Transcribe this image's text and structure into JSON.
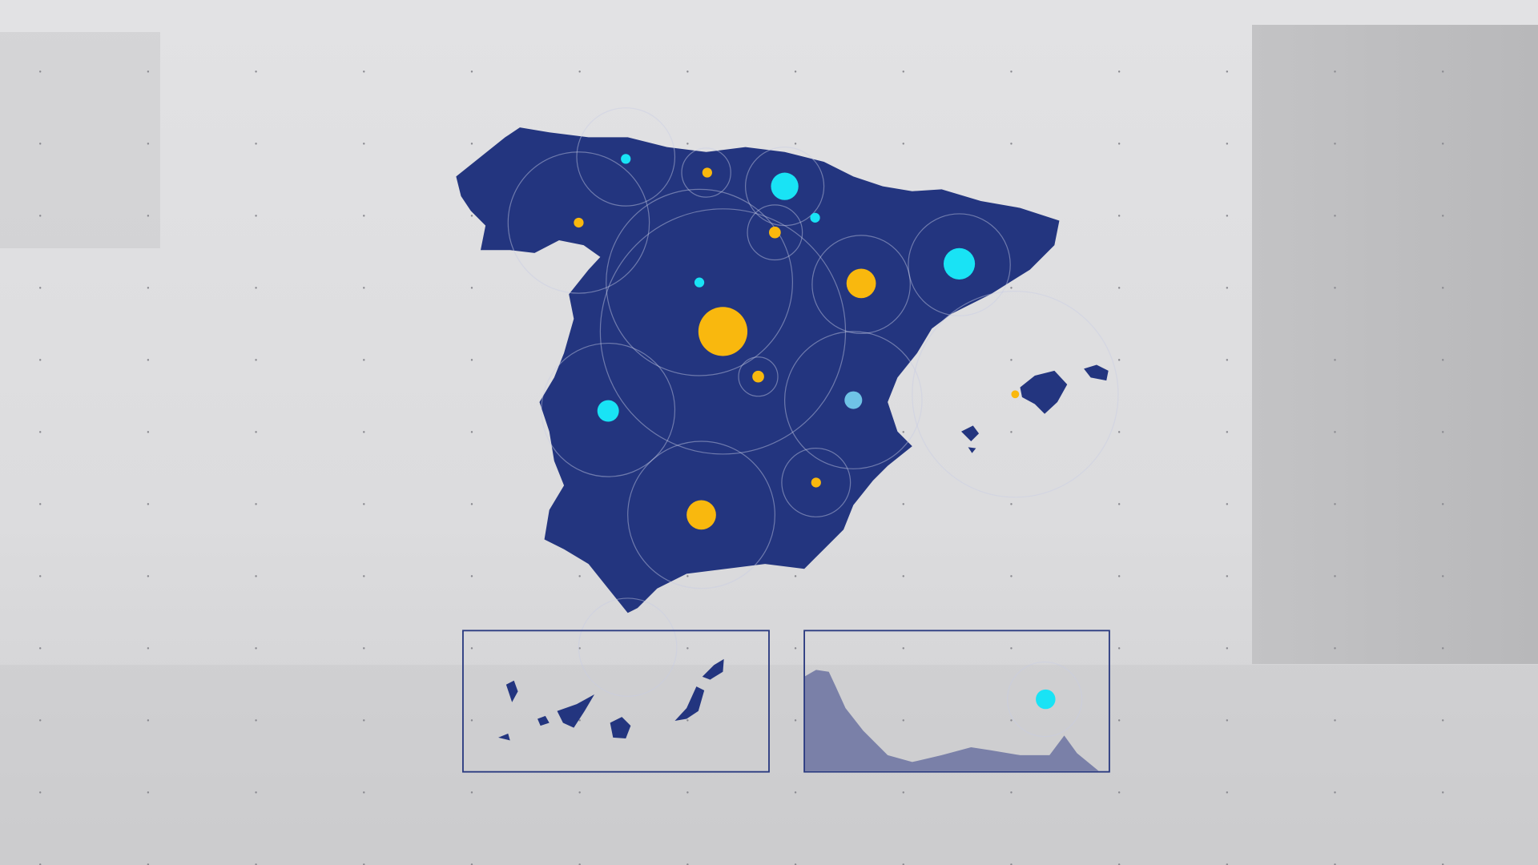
{
  "colors": {
    "land": "#23357f",
    "frame": "#2a3a80",
    "marker_yellow": "#f9b80e",
    "marker_cyan": "#19e3f5",
    "marker_lightblue": "#6fc3e6",
    "ring": "#c8cde4",
    "background": "#dedee0"
  },
  "insets": [
    {
      "region": "canary-islands"
    },
    {
      "region": "ceuta-melilla"
    }
  ]
}
